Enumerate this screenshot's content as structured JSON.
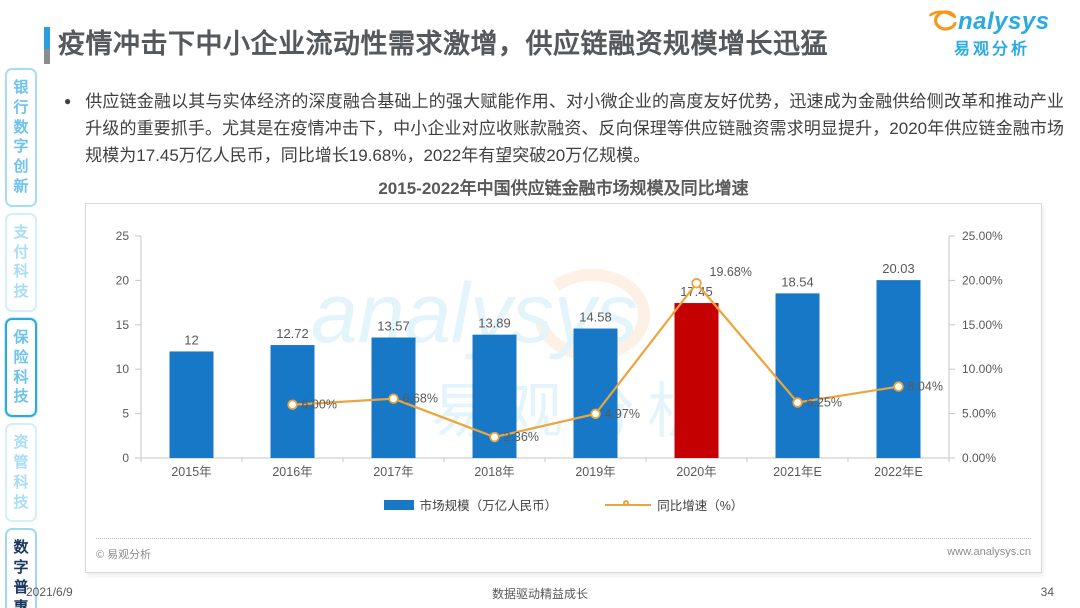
{
  "page": {
    "title": "疫情冲击下中小企业流动性需求激增，供应链融资规模增长迅猛",
    "footer": {
      "date": "2021/6/9",
      "slogan": "数据驱动精益成长",
      "page_number": "34"
    }
  },
  "logo": {
    "brand": "analysys",
    "brand_tail": "nalysys",
    "cn": "易观分析"
  },
  "sidebar": {
    "items": [
      {
        "label": "银行数字创新",
        "variant": "normal"
      },
      {
        "label": "支付科技",
        "variant": "muted"
      },
      {
        "label": "保险科技",
        "variant": "outlined"
      },
      {
        "label": "资管科技",
        "variant": "muted"
      },
      {
        "label": "数字普惠",
        "variant": "active"
      }
    ]
  },
  "intro": {
    "bullet": "●",
    "text": "供应链金融以其与实体经济的深度融合基础上的强大赋能作用、对小微企业的高度友好优势，迅速成为金融供给侧改革和推动产业升级的重要抓手。尤其是在疫情冲击下，中小企业对应收账款融资、反向保理等供应链融资需求明显提升，2020年供应链金融市场规模为17.45万亿人民币，同比增长19.68%，2022年有望突破20万亿规模。"
  },
  "chart_card": {
    "source": "© 易观分析",
    "website": "www.analysys.cn"
  },
  "colors": {
    "bar_blue": "#1878c8",
    "bar_red": "#c50000",
    "line_orange": "#eda43c",
    "brand_blue": "#29abe2",
    "axis_gray": "#c6c6c6",
    "label_gray": "#595959"
  },
  "chart_data": {
    "type": "bar",
    "combo": "bar+line",
    "title": "2015-2022年中国供应链金融市场规模及同比增速",
    "categories": [
      "2015年",
      "2016年",
      "2017年",
      "2018年",
      "2019年",
      "2020年",
      "2021年E",
      "2022年E"
    ],
    "series": [
      {
        "name": "市场规模（万亿人民币）",
        "type": "bar",
        "axis": "left",
        "values": [
          12,
          12.72,
          13.57,
          13.89,
          14.58,
          17.45,
          18.54,
          20.03
        ],
        "labels": [
          "12",
          "12.72",
          "13.57",
          "13.89",
          "14.58",
          "17.45",
          "18.54",
          "20.03"
        ],
        "colors": [
          "#1878c8",
          "#1878c8",
          "#1878c8",
          "#1878c8",
          "#1878c8",
          "#c50000",
          "#1878c8",
          "#1878c8"
        ]
      },
      {
        "name": "同比增速（%）",
        "type": "line",
        "axis": "right",
        "color": "#eda43c",
        "marker": "open-circle",
        "values": [
          null,
          6.0,
          6.68,
          2.36,
          4.97,
          19.68,
          6.25,
          8.04
        ],
        "labels": [
          "",
          "6.00%",
          "6.68%",
          "2.36%",
          "4.97%",
          "19.68%",
          "6.25%",
          "8.04%"
        ],
        "label_offsets": [
          [
            0,
            0
          ],
          [
            9,
            4
          ],
          [
            9,
            4
          ],
          [
            9,
            4
          ],
          [
            9,
            4
          ],
          [
            13,
            -7
          ],
          [
            9,
            4
          ],
          [
            9,
            4
          ]
        ]
      }
    ],
    "left_axis": {
      "min": 0,
      "max": 25,
      "tick_labels": [
        "0",
        "5",
        "10",
        "15",
        "20",
        "25"
      ]
    },
    "right_axis": {
      "min": 0,
      "max": 25,
      "tick_labels": [
        "0.00%",
        "5.00%",
        "10.00%",
        "15.00%",
        "20.00%",
        "25.00%"
      ]
    },
    "grid": false,
    "legend_position": "bottom",
    "watermark": {
      "en": "analysys",
      "cn": "易观分析"
    }
  }
}
